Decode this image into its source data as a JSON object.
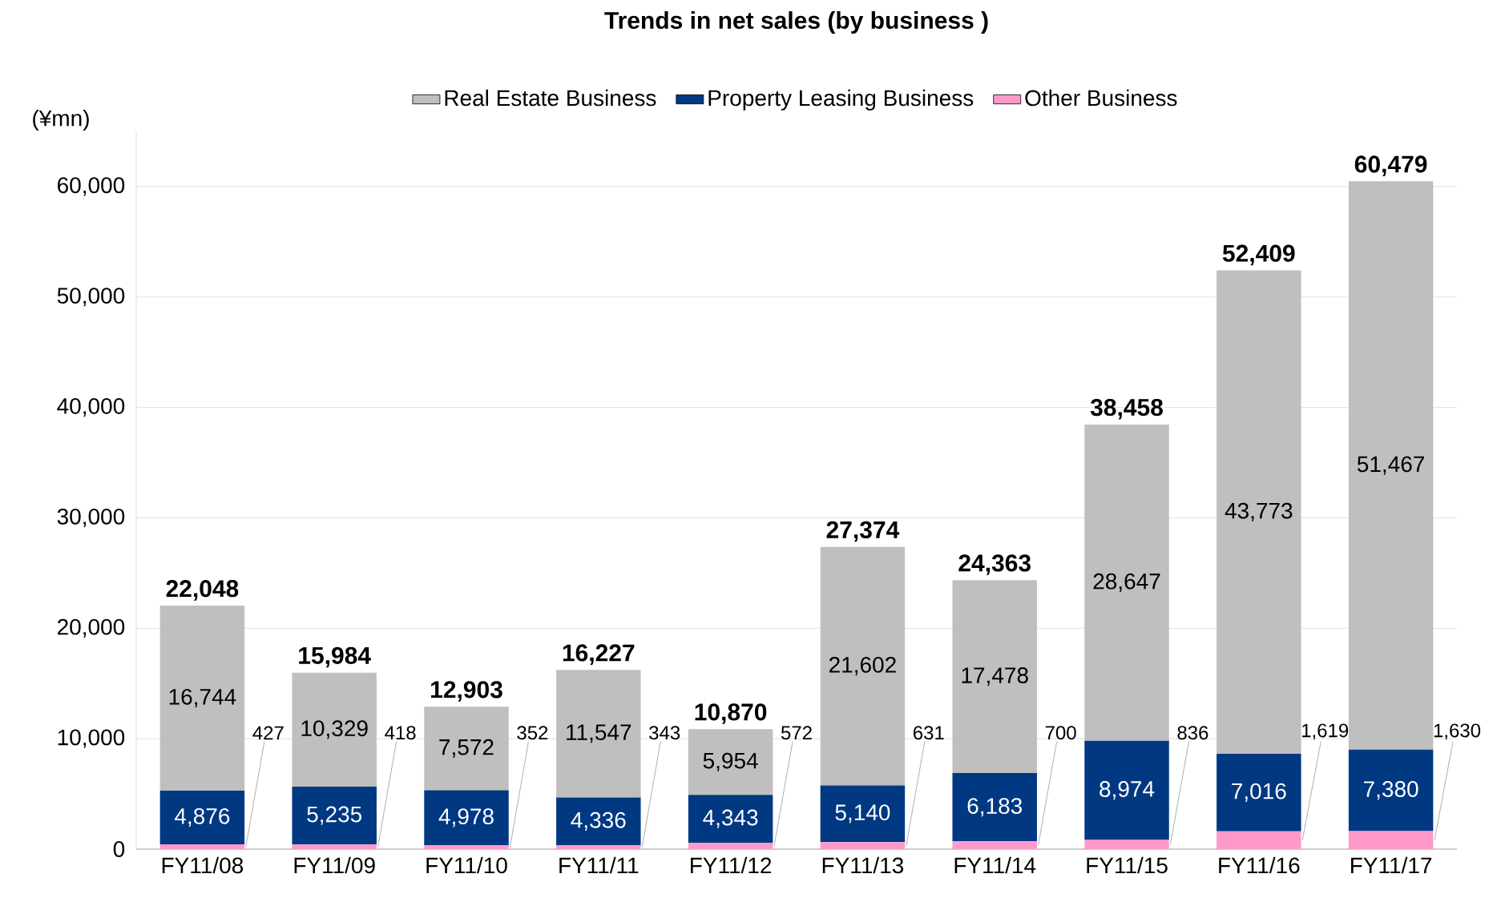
{
  "chart_data": {
    "type": "bar",
    "stacked": true,
    "title": "Trends in net sales (by business )",
    "ylabel": "(¥mn)",
    "categories": [
      "FY11/08",
      "FY11/09",
      "FY11/10",
      "FY11/11",
      "FY11/12",
      "FY11/13",
      "FY11/14",
      "FY11/15",
      "FY11/16",
      "FY11/17"
    ],
    "series": [
      {
        "name": "Other Business",
        "color": "#ff99cc",
        "values": [
          427,
          418,
          352,
          343,
          572,
          631,
          700,
          836,
          1619,
          1630
        ],
        "value_labels": [
          "427",
          "418",
          "352",
          "343",
          "572",
          "631",
          "700",
          "836",
          "1,619",
          "1,630"
        ]
      },
      {
        "name": "Property Leasing Business",
        "color": "#003882",
        "values": [
          4876,
          5235,
          4978,
          4336,
          4343,
          5140,
          6183,
          8974,
          7016,
          7380
        ],
        "value_labels": [
          "4,876",
          "5,235",
          "4,978",
          "4,336",
          "4,343",
          "5,140",
          "6,183",
          "8,974",
          "7,016",
          "7,380"
        ]
      },
      {
        "name": "Real Estate Business",
        "color": "#bfbfbf",
        "values": [
          16744,
          10329,
          7572,
          11547,
          5954,
          21602,
          17478,
          28647,
          43773,
          51467
        ],
        "value_labels": [
          "16,744",
          "10,329",
          "7,572",
          "11,547",
          "5,954",
          "21,602",
          "17,478",
          "28,647",
          "43,773",
          "51,467"
        ]
      }
    ],
    "totals": [
      "22,048",
      "15,984",
      "12,903",
      "16,227",
      "10,870",
      "27,374",
      "24,363",
      "38,458",
      "52,409",
      "60,479"
    ],
    "ylim": [
      0,
      65000
    ],
    "yticks": [
      0,
      {
        "value": 10000,
        "label": "10,000"
      },
      {
        "value": 20000,
        "label": "20,000"
      },
      {
        "value": 30000,
        "label": "30,000"
      },
      {
        "value": 40000,
        "label": "40,000"
      },
      {
        "value": 50000,
        "label": "50,000"
      },
      {
        "value": 60000,
        "label": "60,000"
      }
    ],
    "grid": "y",
    "legend": "top"
  }
}
